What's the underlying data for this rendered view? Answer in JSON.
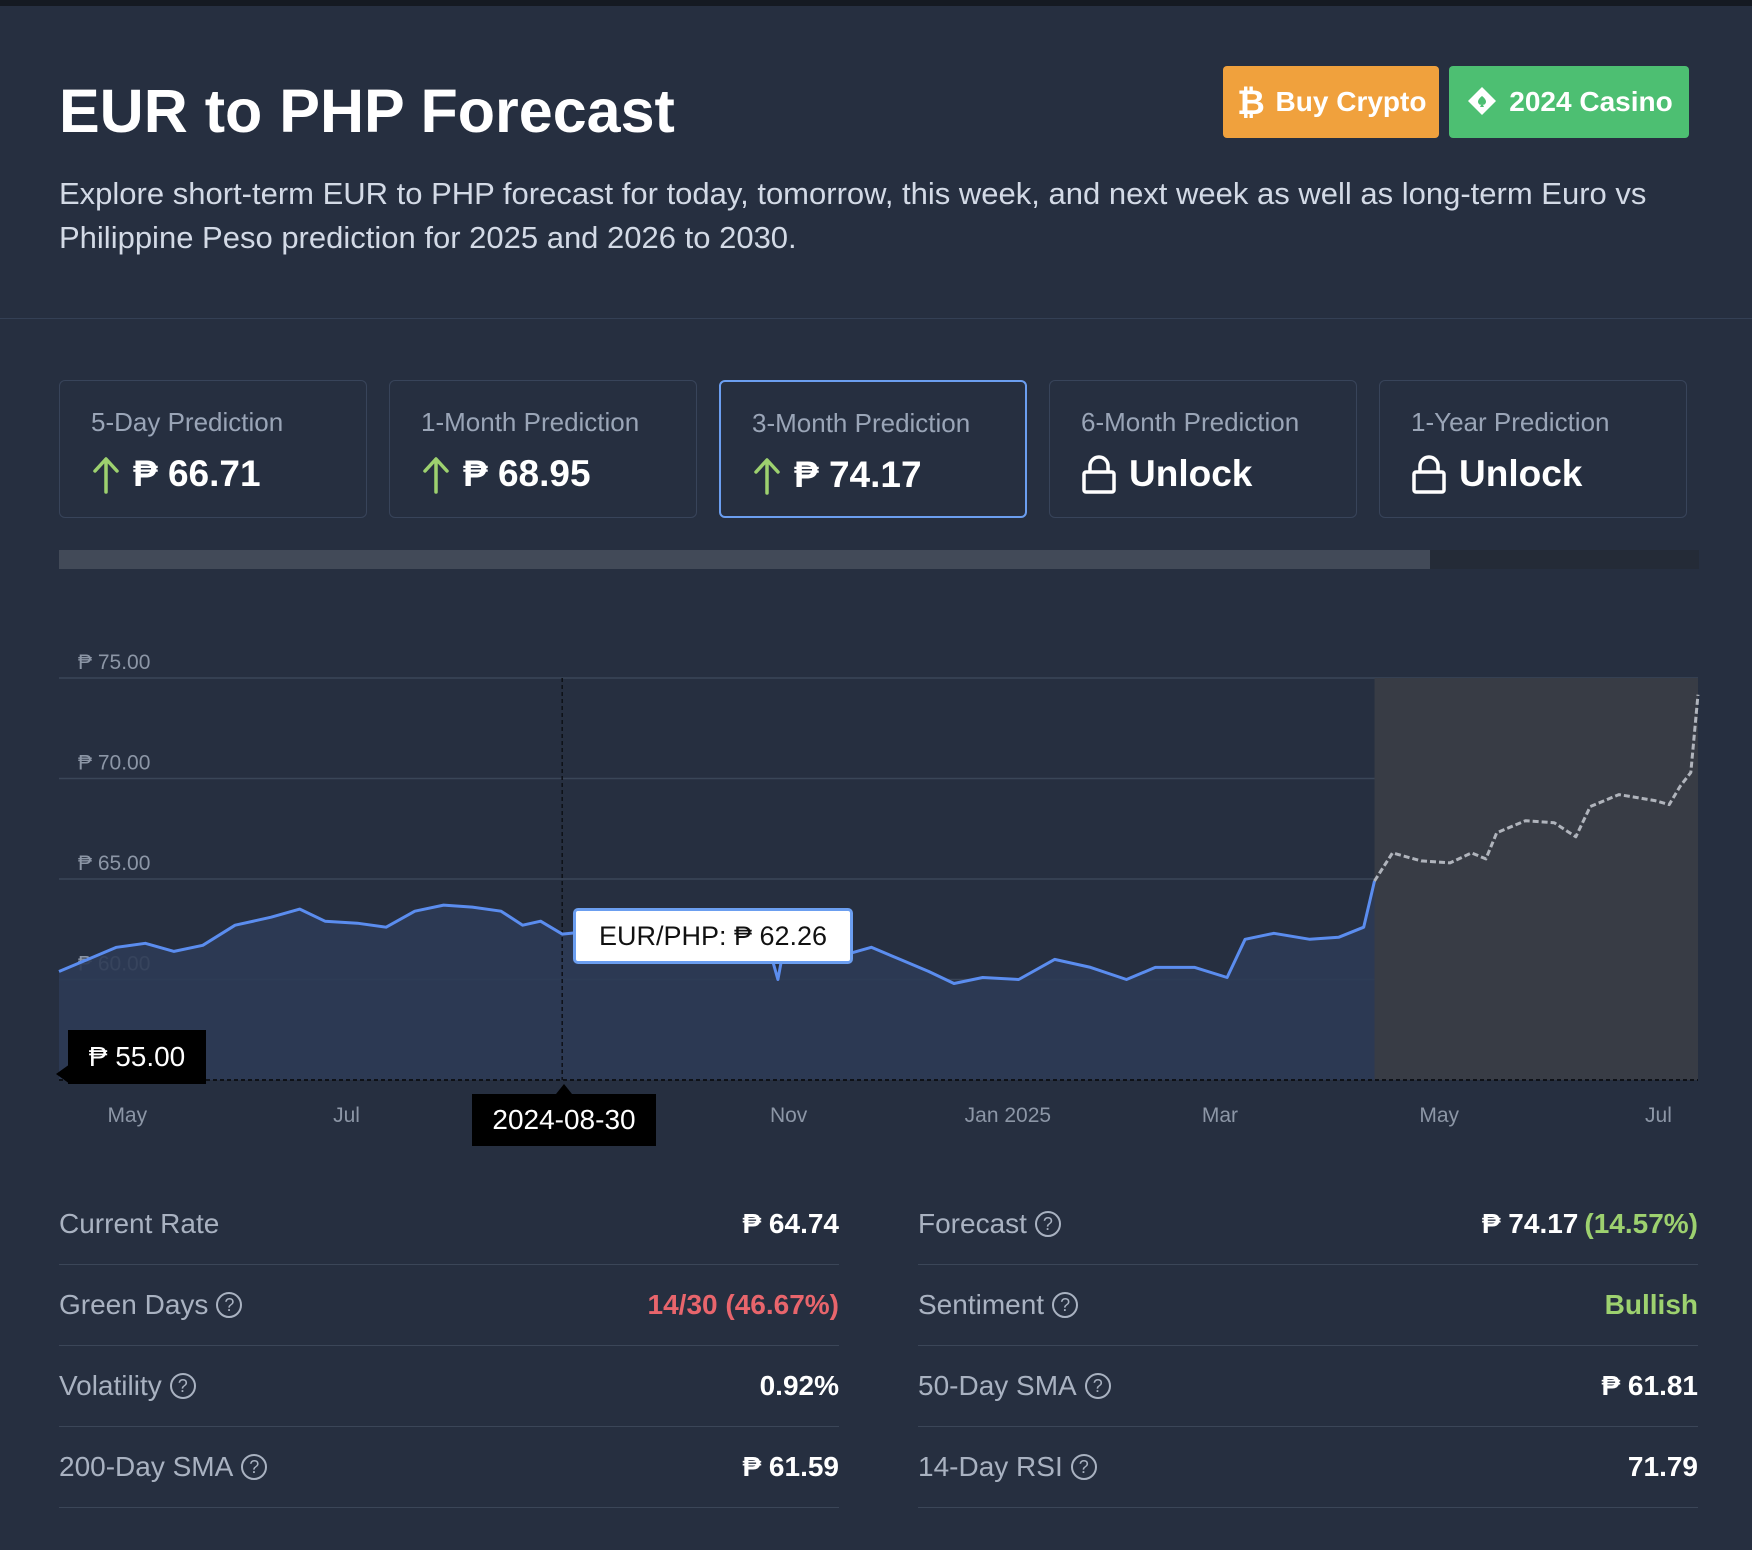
{
  "header": {
    "title": "EUR to PHP Forecast",
    "subtitle": "Explore short-term EUR to PHP forecast for today, tomorrow, this week, and next week as well as long-term Euro vs Philippine Peso prediction for 2025 and 2026 to 2030.",
    "buy_crypto_label": "Buy Crypto",
    "casino_label": "2024 Casino",
    "buy_crypto_color": "#f0a13d",
    "casino_color": "#4dbf72"
  },
  "predictions": [
    {
      "label": "5-Day Prediction",
      "value": "₱ 66.71",
      "icon": "arrow-up-icon",
      "locked": false
    },
    {
      "label": "1-Month Prediction",
      "value": "₱ 68.95",
      "icon": "arrow-up-icon",
      "locked": false
    },
    {
      "label": "3-Month Prediction",
      "value": "₱ 74.17",
      "icon": "arrow-up-icon",
      "locked": false,
      "active": true
    },
    {
      "label": "6-Month Prediction",
      "value": "Unlock",
      "icon": "lock-icon",
      "locked": true
    },
    {
      "label": "1-Year Prediction",
      "value": "Unlock",
      "icon": "lock-icon",
      "locked": true
    }
  ],
  "timeline": {
    "selected_fraction": 0.836
  },
  "chart": {
    "tooltip": "EUR/PHP: ₱ 62.26",
    "y_marker": "₱ 55.00",
    "x_marker": "2024-08-30",
    "colors": {
      "history": "#5b8def",
      "forecast": "#b0b4bc",
      "area": "#2d3b55",
      "forecast_area": "#383c45"
    }
  },
  "chart_data": {
    "type": "line",
    "title": "",
    "xlabel": "",
    "ylabel": "",
    "ylim": [
      55,
      75
    ],
    "yticks": [
      75,
      70,
      65,
      60
    ],
    "ytick_labels": [
      "₱ 75.00",
      "₱ 70.00",
      "₱ 65.00",
      "₱ 60.00"
    ],
    "xticks": [
      "2024-05-01",
      "2024-07-01",
      "2024-09-01",
      "2024-11-01",
      "2025-01-01",
      "2025-03-01",
      "2025-05-01",
      "2025-07-01"
    ],
    "xtick_labels": [
      "May",
      "Jul",
      "",
      "Nov",
      "Jan 2025",
      "Mar",
      "May",
      "Jul"
    ],
    "xlim": [
      "2024-04-12",
      "2025-07-12"
    ],
    "series": [
      {
        "kind": "history",
        "points": [
          [
            "2024-04-12",
            60.4
          ],
          [
            "2024-04-20",
            61.0
          ],
          [
            "2024-04-28",
            61.6
          ],
          [
            "2024-05-06",
            61.8
          ],
          [
            "2024-05-14",
            61.4
          ],
          [
            "2024-05-22",
            61.7
          ],
          [
            "2024-05-31",
            62.7
          ],
          [
            "2024-06-10",
            63.1
          ],
          [
            "2024-06-18",
            63.5
          ],
          [
            "2024-06-25",
            62.9
          ],
          [
            "2024-07-04",
            62.8
          ],
          [
            "2024-07-12",
            62.6
          ],
          [
            "2024-07-20",
            63.4
          ],
          [
            "2024-07-28",
            63.7
          ],
          [
            "2024-08-05",
            63.6
          ],
          [
            "2024-08-13",
            63.4
          ],
          [
            "2024-08-19",
            62.7
          ],
          [
            "2024-08-24",
            62.9
          ],
          [
            "2024-08-30",
            62.26
          ],
          [
            "2024-09-07",
            62.4
          ],
          [
            "2024-09-15",
            62.6
          ],
          [
            "2024-09-24",
            62.3
          ],
          [
            "2024-10-02",
            62.5
          ],
          [
            "2024-10-10",
            62.2
          ],
          [
            "2024-10-18",
            62.0
          ],
          [
            "2024-10-26",
            61.9
          ],
          [
            "2024-10-29",
            60.0
          ],
          [
            "2024-10-31",
            61.9
          ],
          [
            "2024-11-08",
            61.1
          ],
          [
            "2024-11-16",
            61.2
          ],
          [
            "2024-11-24",
            61.6
          ],
          [
            "2024-12-02",
            61.0
          ],
          [
            "2024-12-10",
            60.4
          ],
          [
            "2024-12-17",
            59.8
          ],
          [
            "2024-12-25",
            60.1
          ],
          [
            "2025-01-04",
            60.0
          ],
          [
            "2025-01-14",
            61.0
          ],
          [
            "2025-01-24",
            60.6
          ],
          [
            "2025-02-03",
            60.0
          ],
          [
            "2025-02-11",
            60.6
          ],
          [
            "2025-02-22",
            60.6
          ],
          [
            "2025-03-03",
            60.1
          ],
          [
            "2025-03-08",
            62.0
          ],
          [
            "2025-03-16",
            62.3
          ],
          [
            "2025-03-26",
            62.0
          ],
          [
            "2025-04-03",
            62.1
          ],
          [
            "2025-04-10",
            62.6
          ],
          [
            "2025-04-13",
            64.9
          ]
        ]
      },
      {
        "kind": "forecast",
        "points": [
          [
            "2025-04-13",
            64.9
          ],
          [
            "2025-04-18",
            66.3
          ],
          [
            "2025-04-26",
            65.9
          ],
          [
            "2025-05-04",
            65.8
          ],
          [
            "2025-05-10",
            66.3
          ],
          [
            "2025-05-14",
            66.0
          ],
          [
            "2025-05-17",
            67.3
          ],
          [
            "2025-05-25",
            67.9
          ],
          [
            "2025-06-02",
            67.8
          ],
          [
            "2025-06-08",
            67.1
          ],
          [
            "2025-06-12",
            68.6
          ],
          [
            "2025-06-20",
            69.2
          ],
          [
            "2025-06-30",
            68.9
          ],
          [
            "2025-07-04",
            68.7
          ],
          [
            "2025-07-07",
            69.6
          ],
          [
            "2025-07-10",
            70.3
          ],
          [
            "2025-07-12",
            74.17
          ]
        ]
      }
    ]
  },
  "stats_left": [
    {
      "label": "Current Rate",
      "value": "₱ 64.74",
      "help": false,
      "tone": "white"
    },
    {
      "label": "Green Days",
      "value": "14/30 (46.67%)",
      "help": true,
      "tone": "red"
    },
    {
      "label": "Volatility",
      "value": "0.92%",
      "help": true,
      "tone": "white"
    },
    {
      "label": "200-Day SMA",
      "value": "₱ 61.59",
      "help": true,
      "tone": "white"
    }
  ],
  "stats_right": [
    {
      "label": "Forecast",
      "value": "₱ 74.17",
      "value_extra": "(14.57%)",
      "help": true,
      "tone": "white"
    },
    {
      "label": "Sentiment",
      "value": "Bullish",
      "help": true,
      "tone": "green"
    },
    {
      "label": "50-Day SMA",
      "value": "₱ 61.81",
      "help": true,
      "tone": "white"
    },
    {
      "label": "14-Day RSI",
      "value": "71.79",
      "help": true,
      "tone": "white"
    }
  ],
  "help_icon_glyph": "?"
}
